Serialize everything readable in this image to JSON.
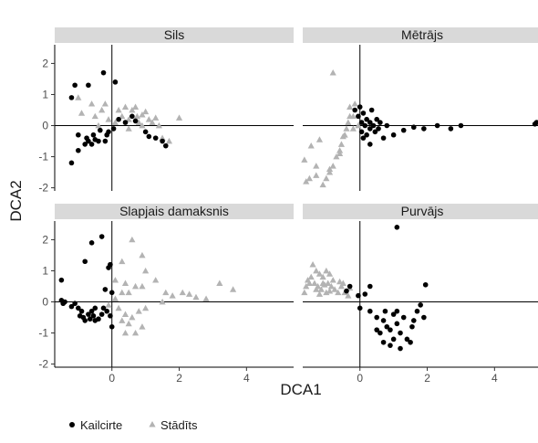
{
  "chart_data": {
    "type": "scatter",
    "xlabel": "DCA1",
    "ylabel": "DCA2",
    "xlim": [
      -1.7,
      5.4
    ],
    "ylim": [
      -2.1,
      2.6
    ],
    "xticks": [
      0,
      2,
      4
    ],
    "yticks": [
      -2,
      -1,
      0,
      1,
      2
    ],
    "grid": false,
    "reference_lines": {
      "x": 0,
      "y": 0
    },
    "legend": {
      "position": "bottom-left",
      "entries": [
        {
          "label": "Kailcirte",
          "shape": "circle",
          "color": "#000000"
        },
        {
          "label": "Stādīts",
          "shape": "triangle",
          "color": "#b3b3b3"
        }
      ]
    },
    "panels": [
      {
        "title": "Sils",
        "series": [
          {
            "name": "Kailcirte",
            "points": [
              [
                -1.2,
                0.9
              ],
              [
                -1.1,
                1.3
              ],
              [
                -0.7,
                1.3
              ],
              [
                -0.25,
                1.7
              ],
              [
                0.1,
                1.4
              ],
              [
                -1.0,
                -0.3
              ],
              [
                -1.2,
                -1.2
              ],
              [
                -1.0,
                -0.8
              ],
              [
                -0.8,
                -0.6
              ],
              [
                -0.7,
                -0.5
              ],
              [
                -0.75,
                -0.4
              ],
              [
                -0.6,
                -0.6
              ],
              [
                -0.55,
                -0.3
              ],
              [
                -0.5,
                -0.45
              ],
              [
                -0.4,
                -0.5
              ],
              [
                -0.35,
                -0.15
              ],
              [
                -0.2,
                -0.5
              ],
              [
                -0.15,
                -0.3
              ],
              [
                -0.1,
                -0.2
              ],
              [
                0.05,
                -0.1
              ],
              [
                0.2,
                0.2
              ],
              [
                0.4,
                0.1
              ],
              [
                0.7,
                0.15
              ],
              [
                1.0,
                -0.2
              ],
              [
                1.1,
                -0.35
              ],
              [
                1.3,
                -0.4
              ],
              [
                1.5,
                -0.5
              ],
              [
                1.6,
                -0.65
              ],
              [
                0.6,
                0.3
              ]
            ]
          },
          {
            "name": "Stādīts",
            "points": [
              [
                -1.0,
                0.9
              ],
              [
                -0.9,
                0.4
              ],
              [
                -0.6,
                0.7
              ],
              [
                -0.5,
                0.3
              ],
              [
                -0.3,
                0.5
              ],
              [
                -0.2,
                0.7
              ],
              [
                -0.1,
                0.2
              ],
              [
                0.1,
                0.1
              ],
              [
                0.2,
                0.5
              ],
              [
                0.3,
                0.3
              ],
              [
                0.4,
                0.6
              ],
              [
                0.5,
                0.2
              ],
              [
                0.6,
                0.5
              ],
              [
                0.7,
                0.6
              ],
              [
                0.75,
                0.3
              ],
              [
                0.8,
                0.1
              ],
              [
                0.9,
                0.35
              ],
              [
                1.0,
                0.45
              ],
              [
                1.1,
                0.2
              ],
              [
                1.3,
                0.25
              ],
              [
                1.5,
                -0.4
              ],
              [
                1.7,
                -0.5
              ],
              [
                0.9,
                0.0
              ],
              [
                1.2,
                0.1
              ],
              [
                0.5,
                -0.1
              ],
              [
                -0.4,
                0.0
              ],
              [
                1.4,
                0.0
              ],
              [
                2.0,
                0.25
              ]
            ]
          }
        ]
      },
      {
        "title": "Mētrājs",
        "series": [
          {
            "name": "Kailcirte",
            "points": [
              [
                -0.15,
                0.5
              ],
              [
                -0.05,
                0.3
              ],
              [
                0.0,
                0.6
              ],
              [
                0.05,
                0.1
              ],
              [
                0.05,
                -0.2
              ],
              [
                0.1,
                0.4
              ],
              [
                0.15,
                0.0
              ],
              [
                0.2,
                -0.3
              ],
              [
                0.2,
                0.2
              ],
              [
                0.3,
                0.1
              ],
              [
                0.3,
                -0.1
              ],
              [
                0.35,
                0.5
              ],
              [
                0.4,
                0.0
              ],
              [
                0.45,
                -0.2
              ],
              [
                0.5,
                0.2
              ],
              [
                0.55,
                -0.1
              ],
              [
                0.6,
                0.1
              ],
              [
                0.7,
                -0.4
              ],
              [
                0.3,
                -0.6
              ],
              [
                0.8,
                0.0
              ],
              [
                1.0,
                -0.3
              ],
              [
                1.3,
                -0.15
              ],
              [
                1.6,
                -0.05
              ],
              [
                1.9,
                -0.1
              ],
              [
                2.3,
                0.0
              ],
              [
                2.7,
                -0.1
              ],
              [
                3.0,
                0.0
              ],
              [
                5.2,
                0.05
              ],
              [
                5.25,
                0.1
              ],
              [
                0.1,
                -0.4
              ]
            ]
          },
          {
            "name": "Stādīts",
            "points": [
              [
                -0.8,
                1.7
              ],
              [
                -0.3,
                0.6
              ],
              [
                -0.2,
                0.3
              ],
              [
                -0.35,
                0.1
              ],
              [
                -0.4,
                -0.1
              ],
              [
                -0.5,
                -0.35
              ],
              [
                -0.55,
                -0.6
              ],
              [
                -0.6,
                -0.8
              ],
              [
                -0.7,
                -1.0
              ],
              [
                -0.8,
                -1.3
              ],
              [
                -0.9,
                -1.5
              ],
              [
                -1.0,
                -1.7
              ],
              [
                -1.1,
                -1.9
              ],
              [
                -1.3,
                -1.6
              ],
              [
                -1.5,
                -1.7
              ],
              [
                -1.6,
                -1.8
              ],
              [
                -1.65,
                -1.1
              ],
              [
                -1.45,
                -0.65
              ],
              [
                -1.2,
                -0.45
              ],
              [
                -1.3,
                -1.3
              ],
              [
                -0.9,
                -1.4
              ],
              [
                -0.6,
                -0.9
              ],
              [
                -0.45,
                -0.3
              ],
              [
                -0.2,
                -0.1
              ],
              [
                -0.05,
                0.0
              ],
              [
                -0.3,
                0.3
              ],
              [
                -0.15,
                0.7
              ]
            ]
          }
        ]
      },
      {
        "title": "Slapjais damaksnis",
        "series": [
          {
            "name": "Kailcirte",
            "points": [
              [
                -0.3,
                2.1
              ],
              [
                -0.6,
                1.9
              ],
              [
                -0.8,
                1.3
              ],
              [
                -0.1,
                1.1
              ],
              [
                -0.05,
                1.2
              ],
              [
                0.0,
                0.3
              ],
              [
                -0.2,
                0.4
              ],
              [
                -1.5,
                0.7
              ],
              [
                -1.5,
                0.05
              ],
              [
                -1.45,
                -0.05
              ],
              [
                -1.4,
                0.0
              ],
              [
                -1.2,
                -0.15
              ],
              [
                -1.0,
                -0.2
              ],
              [
                -0.9,
                -0.3
              ],
              [
                -0.95,
                -0.45
              ],
              [
                -0.85,
                -0.5
              ],
              [
                -0.8,
                -0.6
              ],
              [
                -0.7,
                -0.4
              ],
              [
                -0.6,
                -0.3
              ],
              [
                -0.55,
                -0.45
              ],
              [
                -0.5,
                -0.6
              ],
              [
                -0.4,
                -0.55
              ],
              [
                -0.3,
                -0.4
              ],
              [
                -0.25,
                -0.2
              ],
              [
                -0.15,
                -0.3
              ],
              [
                -0.05,
                -0.45
              ],
              [
                0.0,
                -0.8
              ],
              [
                -0.5,
                -0.2
              ],
              [
                -0.65,
                -0.55
              ],
              [
                -1.1,
                -0.05
              ]
            ]
          },
          {
            "name": "Stādīts",
            "points": [
              [
                0.6,
                2.0
              ],
              [
                0.9,
                1.5
              ],
              [
                0.3,
                1.3
              ],
              [
                1.0,
                1.0
              ],
              [
                0.1,
                0.7
              ],
              [
                0.4,
                0.6
              ],
              [
                0.7,
                0.5
              ],
              [
                0.5,
                0.3
              ],
              [
                0.3,
                0.3
              ],
              [
                0.9,
                0.5
              ],
              [
                1.3,
                0.7
              ],
              [
                1.6,
                0.3
              ],
              [
                2.1,
                0.3
              ],
              [
                2.3,
                0.25
              ],
              [
                2.5,
                0.15
              ],
              [
                2.8,
                0.1
              ],
              [
                3.2,
                0.6
              ],
              [
                3.6,
                0.4
              ],
              [
                0.2,
                -0.2
              ],
              [
                0.4,
                -0.4
              ],
              [
                0.6,
                -0.5
              ],
              [
                0.8,
                -0.3
              ],
              [
                0.5,
                -0.7
              ],
              [
                0.7,
                -1.0
              ],
              [
                0.9,
                -0.8
              ],
              [
                0.4,
                -1.0
              ],
              [
                1.0,
                -0.2
              ],
              [
                0.3,
                -0.6
              ],
              [
                -0.1,
                -0.1
              ],
              [
                0.1,
                0.1
              ],
              [
                1.5,
                0.0
              ],
              [
                1.8,
                0.2
              ]
            ]
          }
        ]
      },
      {
        "title": "Purvājs",
        "series": [
          {
            "name": "Kailcirte",
            "points": [
              [
                1.1,
                2.4
              ],
              [
                0.0,
                -0.2
              ],
              [
                0.3,
                -0.3
              ],
              [
                0.5,
                -0.5
              ],
              [
                0.7,
                -0.6
              ],
              [
                0.75,
                -0.3
              ],
              [
                0.8,
                -0.8
              ],
              [
                0.9,
                -0.9
              ],
              [
                1.0,
                -0.4
              ],
              [
                1.1,
                -0.7
              ],
              [
                1.2,
                -1.0
              ],
              [
                1.3,
                -0.5
              ],
              [
                1.4,
                -1.2
              ],
              [
                1.5,
                -1.3
              ],
              [
                1.55,
                -0.8
              ],
              [
                1.6,
                -0.6
              ],
              [
                1.7,
                -0.3
              ],
              [
                1.8,
                -0.1
              ],
              [
                1.9,
                -0.5
              ],
              [
                1.95,
                0.55
              ],
              [
                1.2,
                -1.5
              ],
              [
                1.0,
                -1.2
              ],
              [
                0.6,
                -1.0
              ],
              [
                0.7,
                -1.3
              ],
              [
                0.9,
                -1.4
              ],
              [
                1.1,
                -0.3
              ],
              [
                0.3,
                0.5
              ],
              [
                0.15,
                0.25
              ],
              [
                -0.3,
                0.5
              ],
              [
                -0.4,
                0.35
              ],
              [
                -0.05,
                0.2
              ],
              [
                0.5,
                -0.9
              ]
            ]
          },
          {
            "name": "Stādīts",
            "points": [
              [
                -1.4,
                1.2
              ],
              [
                -1.3,
                1.0
              ],
              [
                -1.2,
                0.9
              ],
              [
                -1.1,
                0.8
              ],
              [
                -1.0,
                1.0
              ],
              [
                -0.9,
                0.9
              ],
              [
                -1.5,
                0.6
              ],
              [
                -1.6,
                0.5
              ],
              [
                -1.55,
                0.7
              ],
              [
                -1.45,
                0.8
              ],
              [
                -1.35,
                0.6
              ],
              [
                -1.25,
                0.5
              ],
              [
                -1.15,
                0.4
              ],
              [
                -1.05,
                0.55
              ],
              [
                -0.95,
                0.6
              ],
              [
                -0.85,
                0.5
              ],
              [
                -0.75,
                0.4
              ],
              [
                -0.65,
                0.3
              ],
              [
                -0.55,
                0.5
              ],
              [
                -0.5,
                0.6
              ],
              [
                -0.45,
                0.3
              ],
              [
                -0.35,
                0.2
              ],
              [
                -0.3,
                0.45
              ],
              [
                -1.65,
                0.3
              ],
              [
                -1.2,
                0.25
              ],
              [
                -0.8,
                0.7
              ],
              [
                -1.0,
                0.3
              ],
              [
                -0.6,
                0.65
              ],
              [
                -1.3,
                0.4
              ],
              [
                -0.9,
                0.35
              ],
              [
                -1.1,
                0.6
              ]
            ]
          }
        ]
      }
    ]
  }
}
